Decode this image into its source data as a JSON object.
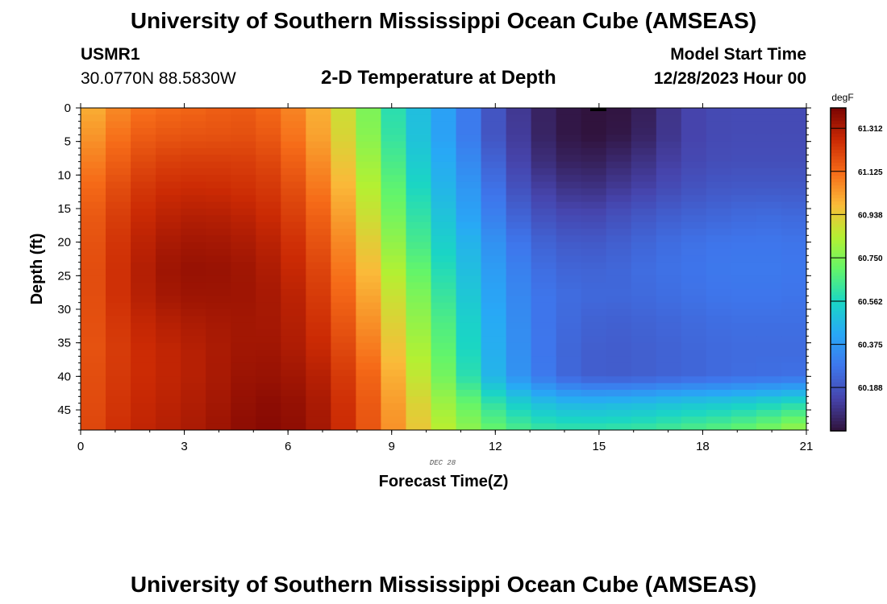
{
  "page": {
    "title": "University of Southern Mississippi Ocean Cube (AMSEAS)",
    "footer_title": "University of Southern Mississippi Ocean Cube (AMSEAS)",
    "station": "USMR1",
    "coords": "30.0770N  88.5830W",
    "model_start_label": "Model Start Time",
    "model_start_value": "12/28/2023 Hour 00"
  },
  "chart_data": {
    "type": "heatmap",
    "title": "2-D Temperature at Depth",
    "xlabel": "Forecast Time(Z)",
    "ylabel": "Depth (ft)",
    "day_label": "DEC 28",
    "xlim": [
      0,
      21
    ],
    "ylim": [
      0,
      48
    ],
    "x_ticks": [
      0,
      3,
      6,
      9,
      12,
      15,
      18,
      21
    ],
    "y_ticks": [
      0,
      5,
      10,
      15,
      20,
      25,
      30,
      35,
      40,
      45
    ],
    "x": [
      0,
      0.75,
      1.5,
      2.25,
      3,
      3.75,
      4.5,
      5.25,
      6,
      6.75,
      7.5,
      8.25,
      9,
      9.75,
      10.5,
      11.25,
      12,
      12.75,
      13.5,
      14.25,
      15,
      15.75,
      16.5,
      17.25,
      18,
      18.75,
      19.5,
      20.25,
      21
    ],
    "depths": [
      0,
      4,
      8,
      12,
      16,
      20,
      24,
      28,
      32,
      36,
      40,
      44,
      48
    ],
    "colorbar": {
      "unit": "degF",
      "min": 60.0,
      "max": 61.4,
      "tick_labels": [
        "61.312",
        "61.125",
        "60.938",
        "60.750",
        "60.562",
        "60.375",
        "60.188"
      ],
      "tick_values": [
        61.312,
        61.125,
        60.938,
        60.75,
        60.562,
        60.375,
        60.188
      ]
    },
    "values": [
      [
        60.97,
        61.04,
        61.1,
        61.12,
        61.13,
        61.14,
        61.16,
        61.14,
        61.09,
        61.02,
        60.91,
        60.76,
        60.6,
        60.49,
        60.4,
        60.29,
        60.18,
        60.1,
        60.04,
        60.01,
        60.0,
        60.01,
        60.05,
        60.12,
        60.15,
        60.16,
        60.16,
        60.16,
        60.16
      ],
      [
        61.01,
        61.08,
        61.14,
        61.16,
        61.17,
        61.17,
        61.18,
        61.17,
        61.12,
        61.04,
        60.93,
        60.78,
        60.62,
        60.5,
        60.4,
        60.29,
        60.18,
        60.11,
        60.04,
        60.01,
        60.0,
        60.02,
        60.06,
        60.12,
        60.15,
        60.16,
        60.16,
        60.16,
        60.16
      ],
      [
        61.06,
        61.12,
        61.18,
        61.21,
        61.22,
        61.22,
        61.22,
        61.21,
        61.16,
        61.08,
        60.97,
        60.82,
        60.66,
        60.53,
        60.43,
        60.33,
        60.22,
        60.13,
        60.07,
        60.04,
        60.04,
        60.07,
        60.1,
        60.14,
        60.16,
        60.17,
        60.17,
        60.17,
        60.17
      ],
      [
        61.1,
        61.16,
        61.22,
        61.25,
        61.26,
        61.26,
        61.25,
        61.24,
        61.2,
        61.12,
        61.01,
        60.86,
        60.7,
        60.57,
        60.46,
        60.37,
        60.26,
        60.17,
        60.12,
        60.09,
        60.09,
        60.12,
        60.14,
        60.17,
        60.19,
        60.2,
        60.2,
        60.2,
        60.2
      ],
      [
        61.13,
        61.19,
        61.25,
        61.28,
        61.3,
        61.3,
        61.29,
        61.27,
        61.23,
        61.16,
        61.05,
        60.9,
        60.74,
        60.61,
        60.5,
        60.4,
        60.3,
        60.22,
        60.17,
        60.15,
        60.15,
        60.18,
        60.2,
        60.22,
        60.23,
        60.24,
        60.25,
        60.25,
        60.24
      ],
      [
        61.14,
        61.21,
        61.27,
        61.31,
        61.33,
        61.33,
        61.32,
        61.3,
        61.26,
        61.19,
        61.09,
        60.95,
        60.79,
        60.65,
        60.54,
        60.45,
        60.35,
        60.27,
        60.22,
        60.2,
        60.2,
        60.22,
        60.24,
        60.26,
        60.27,
        60.28,
        60.28,
        60.28,
        60.27
      ],
      [
        61.15,
        61.22,
        61.28,
        61.33,
        61.35,
        61.35,
        61.34,
        61.32,
        61.28,
        61.22,
        61.12,
        60.99,
        60.84,
        60.7,
        60.58,
        60.48,
        60.38,
        60.3,
        60.25,
        60.23,
        60.23,
        60.24,
        60.26,
        60.27,
        60.28,
        60.29,
        60.29,
        60.29,
        60.28
      ],
      [
        61.15,
        61.22,
        61.28,
        61.32,
        61.34,
        61.34,
        61.34,
        61.33,
        61.3,
        61.24,
        61.15,
        61.03,
        60.89,
        60.75,
        60.62,
        60.51,
        60.4,
        60.32,
        60.27,
        60.25,
        60.24,
        60.24,
        60.25,
        60.26,
        60.27,
        60.28,
        60.28,
        60.28,
        60.27
      ],
      [
        61.15,
        61.21,
        61.26,
        61.29,
        61.31,
        61.32,
        61.33,
        61.33,
        61.31,
        61.26,
        61.18,
        61.07,
        60.93,
        60.79,
        60.66,
        60.54,
        60.42,
        60.33,
        60.27,
        60.24,
        60.22,
        60.22,
        60.23,
        60.24,
        60.25,
        60.26,
        60.26,
        60.26,
        60.26
      ],
      [
        61.15,
        61.2,
        61.25,
        61.27,
        61.29,
        61.31,
        61.33,
        61.34,
        61.32,
        61.28,
        61.21,
        61.11,
        60.97,
        60.83,
        60.69,
        60.56,
        60.43,
        60.34,
        60.27,
        60.23,
        60.21,
        60.21,
        60.22,
        60.23,
        60.24,
        60.25,
        60.25,
        60.25,
        60.25
      ],
      [
        61.16,
        61.21,
        61.25,
        61.27,
        61.29,
        61.31,
        61.34,
        61.35,
        61.34,
        61.31,
        61.24,
        61.15,
        61.01,
        60.87,
        60.73,
        60.59,
        60.45,
        60.35,
        60.28,
        60.23,
        60.21,
        60.21,
        60.22,
        60.23,
        60.24,
        60.25,
        60.26,
        60.26,
        60.27
      ],
      [
        61.16,
        61.22,
        61.26,
        61.28,
        61.3,
        61.32,
        61.35,
        61.37,
        61.36,
        61.33,
        61.26,
        61.17,
        61.04,
        60.92,
        60.8,
        60.7,
        60.6,
        60.53,
        60.48,
        60.46,
        60.46,
        60.47,
        60.48,
        60.5,
        60.51,
        60.52,
        60.54,
        60.56,
        60.59
      ],
      [
        61.17,
        61.23,
        61.27,
        61.29,
        61.31,
        61.33,
        61.36,
        61.38,
        61.37,
        61.34,
        61.27,
        61.18,
        61.06,
        60.95,
        60.85,
        60.77,
        60.7,
        60.65,
        60.62,
        60.61,
        60.61,
        60.62,
        60.63,
        60.65,
        60.67,
        60.69,
        60.72,
        60.76,
        60.82
      ]
    ]
  }
}
